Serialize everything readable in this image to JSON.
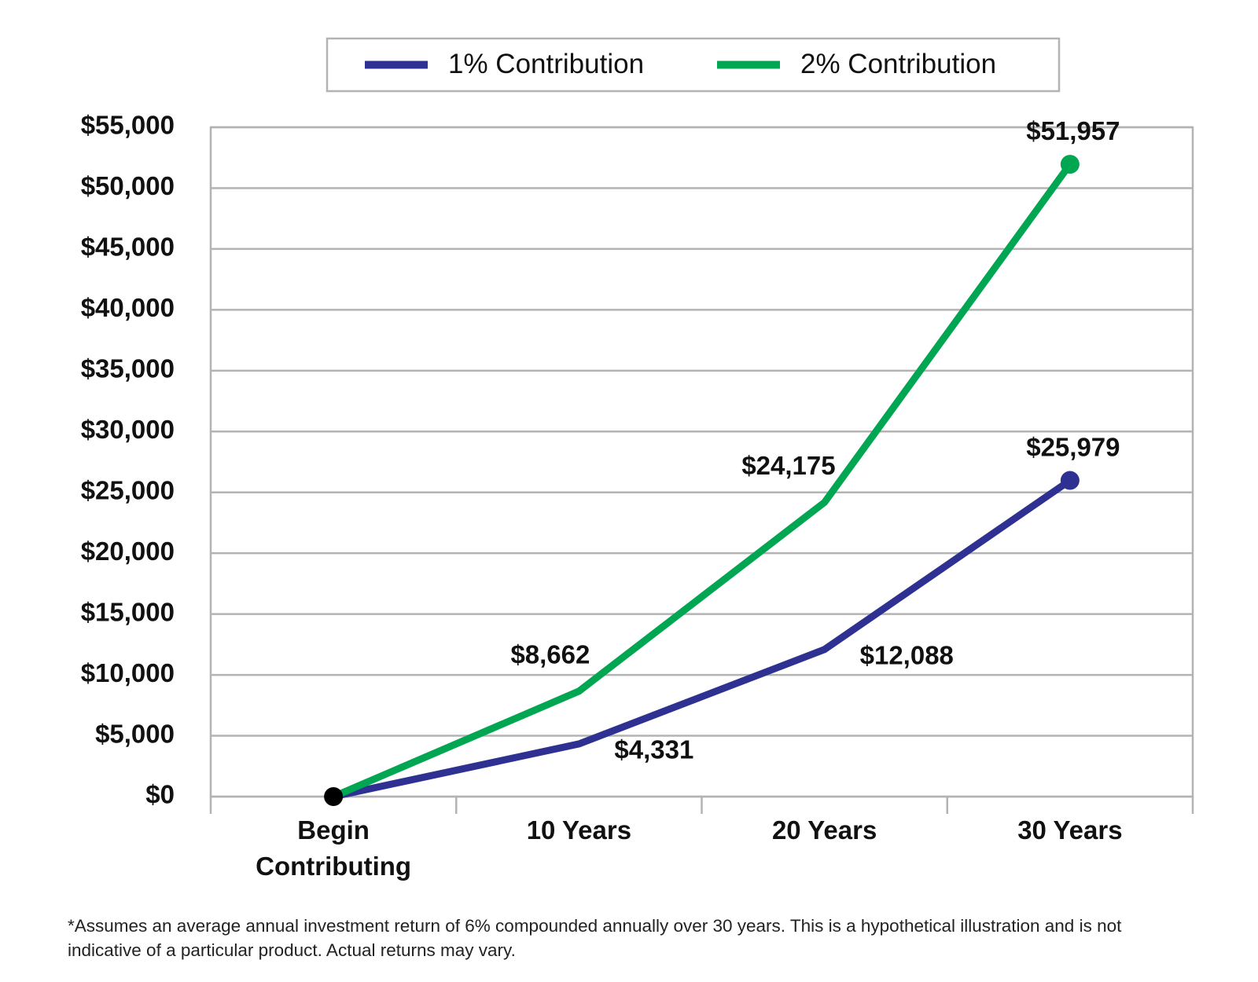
{
  "chart_data": {
    "type": "line",
    "categories": [
      "Begin Contributing",
      "10 Years",
      "20 Years",
      "30 Years"
    ],
    "series": [
      {
        "name": "1% Contribution",
        "color": "#2e3192",
        "values": [
          0,
          4331,
          12088,
          25979
        ],
        "value_labels": [
          null,
          "$4,331",
          "$12,088",
          "$25,979"
        ]
      },
      {
        "name": "2% Contribution",
        "color": "#00a651",
        "values": [
          0,
          8662,
          24175,
          51957
        ],
        "value_labels": [
          null,
          "$8,662",
          "$24,175",
          "$51,957"
        ]
      }
    ],
    "start_marker_color": "#000000",
    "ylim": [
      0,
      55000
    ],
    "yticks": [
      {
        "value": 0,
        "label": "$0"
      },
      {
        "value": 5000,
        "label": "$5,000"
      },
      {
        "value": 10000,
        "label": "$10,000"
      },
      {
        "value": 15000,
        "label": "$15,000"
      },
      {
        "value": 20000,
        "label": "$20,000"
      },
      {
        "value": 25000,
        "label": "$25,000"
      },
      {
        "value": 30000,
        "label": "$30,000"
      },
      {
        "value": 35000,
        "label": "$35,000"
      },
      {
        "value": 40000,
        "label": "$40,000"
      },
      {
        "value": 45000,
        "label": "$45,000"
      },
      {
        "value": 50000,
        "label": "$50,000"
      },
      {
        "value": 55000,
        "label": "$55,000"
      }
    ],
    "grid": true,
    "legend": "top",
    "footnote": "*Assumes an average annual investment return of 6% compounded annually over 30 years. This is a hypothetical illustration and is not indicative of a particular product. Actual returns may vary."
  }
}
